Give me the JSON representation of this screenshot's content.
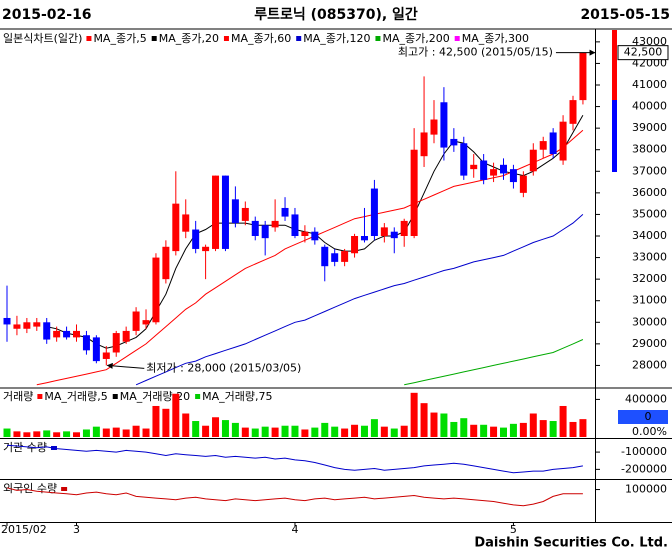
{
  "header": {
    "start_date": "2015-02-16",
    "title": "루트로닉 (085370), 일간",
    "end_date": "2015-05-15"
  },
  "chart_data": [
    {
      "type": "candlestick",
      "title": "일본식차트(일간)",
      "categories": [
        "2015/02",
        null,
        null,
        null,
        null,
        null,
        null,
        "3",
        null,
        null,
        null,
        null,
        null,
        null,
        null,
        null,
        null,
        null,
        null,
        null,
        null,
        null,
        null,
        null,
        null,
        null,
        null,
        null,
        null,
        "4",
        null,
        null,
        null,
        null,
        null,
        null,
        null,
        null,
        null,
        null,
        null,
        null,
        null,
        null,
        null,
        null,
        null,
        null,
        null,
        null,
        null,
        "5",
        null,
        null,
        null,
        null,
        null,
        null,
        null
      ],
      "open": [
        30200,
        29700,
        29700,
        29800,
        30000,
        29300,
        29600,
        29300,
        29400,
        29300,
        28300,
        28600,
        29100,
        29600,
        29900,
        30000,
        32000,
        33300,
        34200,
        34300,
        33300,
        33400,
        36800,
        35700,
        34700,
        34700,
        34500,
        34400,
        35300,
        35000,
        34000,
        34200,
        33500,
        33200,
        32800,
        33200,
        34000,
        36200,
        34000,
        34200,
        34000,
        34000,
        37700,
        38700,
        40200,
        38500,
        38300,
        37100,
        37500,
        36800,
        37300,
        37100,
        36000,
        37000,
        38000,
        38800,
        37500,
        39200,
        40300
      ],
      "high": [
        31700,
        30300,
        30200,
        30200,
        30200,
        29800,
        29800,
        29900,
        29600,
        29400,
        28900,
        29600,
        29800,
        30700,
        30600,
        33200,
        33800,
        37000,
        35700,
        34700,
        33600,
        36800,
        36800,
        36300,
        35600,
        34900,
        34700,
        35700,
        35800,
        35300,
        34500,
        34400,
        33600,
        33400,
        33400,
        34100,
        35300,
        36600,
        34600,
        34400,
        34800,
        39000,
        41400,
        40300,
        40900,
        39000,
        38600,
        37800,
        37800,
        37400,
        37600,
        37300,
        37000,
        38300,
        38600,
        39000,
        39600,
        40500,
        42500
      ],
      "low": [
        29100,
        29400,
        29500,
        29600,
        29000,
        29100,
        29200,
        29100,
        28500,
        28100,
        28000,
        28400,
        29000,
        29400,
        29700,
        29900,
        31800,
        33100,
        33900,
        33200,
        32000,
        33300,
        33300,
        34400,
        34500,
        33800,
        33100,
        34200,
        34700,
        33900,
        33700,
        33600,
        31900,
        32600,
        32600,
        33000,
        33700,
        33800,
        33700,
        33200,
        33500,
        33900,
        37200,
        38300,
        37500,
        37900,
        36600,
        36700,
        36400,
        36500,
        36600,
        36200,
        35800,
        36800,
        37600,
        37600,
        37300,
        38900,
        40100
      ],
      "close": [
        29900,
        29900,
        30000,
        30000,
        29200,
        29600,
        29300,
        29600,
        28700,
        28200,
        28600,
        29500,
        29600,
        30500,
        30100,
        33000,
        33500,
        35500,
        35000,
        33400,
        33500,
        36800,
        33400,
        34600,
        35300,
        34000,
        33900,
        34700,
        34900,
        34000,
        34200,
        33800,
        32600,
        32800,
        33300,
        34000,
        33800,
        34000,
        34400,
        33900,
        34700,
        38000,
        38800,
        39400,
        38100,
        38200,
        36800,
        37300,
        36600,
        37100,
        36900,
        36500,
        36800,
        38000,
        38400,
        37800,
        39300,
        40300,
        42500
      ],
      "up_color": "#ff0000",
      "down_color": "#0000ff",
      "series": [
        {
          "name": "MA_종가,5",
          "color": "#ff0000"
        },
        {
          "name": "MA_종가,20",
          "color": "#000000",
          "values": [
            null,
            null,
            null,
            null,
            29800,
            29700,
            29500,
            29400,
            29300,
            29000,
            28800,
            28900,
            29100,
            29300,
            29700,
            30500,
            31300,
            32500,
            33400,
            34100,
            34300,
            34600,
            34600,
            34600,
            34600,
            34500,
            34500,
            34500,
            34500,
            34300,
            34200,
            34100,
            33700,
            33400,
            33300,
            33300,
            33400,
            33800,
            34000,
            34000,
            34200,
            35000,
            36000,
            37000,
            37800,
            38400,
            38300,
            37900,
            37400,
            37200,
            37000,
            36900,
            36800,
            37000,
            37300,
            37600,
            38000,
            38800,
            39600
          ]
        },
        {
          "name": "MA_종가,60",
          "color": "#ff0000",
          "values": [
            null,
            null,
            null,
            27100,
            27200,
            27300,
            27400,
            27500,
            27600,
            27700,
            27800,
            28100,
            28400,
            28700,
            29000,
            29400,
            29800,
            30200,
            30600,
            30900,
            31300,
            31600,
            31900,
            32200,
            32500,
            32700,
            32900,
            33100,
            33400,
            33600,
            33800,
            34000,
            34200,
            34400,
            34600,
            34800,
            34900,
            35000,
            35100,
            35200,
            35300,
            35500,
            35700,
            35900,
            36100,
            36300,
            36400,
            36500,
            36600,
            36700,
            36800,
            37000,
            37200,
            37400,
            37600,
            37800,
            38100,
            38500,
            38900
          ]
        },
        {
          "name": "MA_종가,120",
          "color": "#0000cc",
          "values": [
            null,
            null,
            null,
            null,
            null,
            null,
            null,
            null,
            null,
            null,
            null,
            null,
            null,
            27100,
            27300,
            27500,
            27700,
            27900,
            28100,
            28200,
            28400,
            28550,
            28700,
            28850,
            29000,
            29200,
            29400,
            29600,
            29800,
            30000,
            30100,
            30300,
            30500,
            30700,
            30900,
            31100,
            31250,
            31400,
            31550,
            31700,
            31800,
            31950,
            32100,
            32250,
            32400,
            32500,
            32650,
            32800,
            32900,
            33000,
            33100,
            33300,
            33500,
            33700,
            33850,
            34000,
            34300,
            34600,
            35000
          ]
        },
        {
          "name": "MA_종가,200",
          "color": "#00aa00",
          "values": [
            null,
            null,
            null,
            null,
            null,
            null,
            null,
            null,
            null,
            null,
            null,
            null,
            null,
            null,
            null,
            null,
            null,
            null,
            null,
            null,
            null,
            null,
            null,
            null,
            null,
            null,
            null,
            null,
            null,
            null,
            null,
            null,
            null,
            null,
            null,
            null,
            null,
            null,
            null,
            null,
            27100,
            27200,
            27300,
            27400,
            27500,
            27600,
            27700,
            27800,
            27900,
            28000,
            28100,
            28200,
            28300,
            28400,
            28500,
            28600,
            28800,
            29000,
            29200
          ]
        },
        {
          "name": "MA_종가,300",
          "color": "#ff00ff"
        }
      ],
      "ylim": [
        27000,
        43550
      ],
      "yticks": [
        28000,
        29000,
        30000,
        31000,
        32000,
        33000,
        34000,
        35000,
        36000,
        37000,
        38000,
        39000,
        40000,
        41000,
        42000,
        43000
      ],
      "annotations": [
        {
          "text": "최고가 : 42,500 (2015/05/15)",
          "value": 42500,
          "color": "#ff0000"
        },
        {
          "text": "최저가 : 28,000 (2015/03/05)",
          "value": 28000,
          "color": "#0000ff"
        }
      ],
      "last_price": {
        "value": 42500,
        "label": "42,500"
      }
    },
    {
      "type": "bar",
      "title": "거래량",
      "values": [
        90000,
        60000,
        50000,
        60000,
        70000,
        50000,
        60000,
        50000,
        80000,
        110000,
        90000,
        100000,
        80000,
        120000,
        90000,
        330000,
        300000,
        460000,
        250000,
        170000,
        120000,
        210000,
        180000,
        150000,
        100000,
        90000,
        110000,
        100000,
        120000,
        120000,
        80000,
        100000,
        150000,
        110000,
        90000,
        130000,
        120000,
        190000,
        110000,
        90000,
        120000,
        470000,
        360000,
        260000,
        250000,
        160000,
        200000,
        130000,
        130000,
        110000,
        100000,
        140000,
        150000,
        250000,
        180000,
        170000,
        330000,
        160000,
        190000
      ],
      "up_color": "#ff0000",
      "down_color": "#00dd00",
      "series": [
        {
          "name": "MA_거래량,5",
          "color": "#ff0000"
        },
        {
          "name": "MA_거래량,20",
          "color": "#000000"
        },
        {
          "name": "MA_거래량,75",
          "color": "#00cc00"
        }
      ],
      "ylim": [
        0,
        500000
      ],
      "yticks": [
        400000
      ],
      "indicator_labels": [
        "0",
        "0.00%"
      ]
    },
    {
      "type": "line",
      "title": "기관 수량",
      "color": "#0000cc",
      "values": [
        -60000,
        -65000,
        -70000,
        -75000,
        -70000,
        -80000,
        -85000,
        -90000,
        -95000,
        -90000,
        -95000,
        -100000,
        -90000,
        -95000,
        -100000,
        -110000,
        -120000,
        -110000,
        -115000,
        -120000,
        -125000,
        -120000,
        -130000,
        -125000,
        -130000,
        -135000,
        -130000,
        -140000,
        -135000,
        -145000,
        -150000,
        -160000,
        -175000,
        -190000,
        -200000,
        -205000,
        -200000,
        -195000,
        -205000,
        -200000,
        -195000,
        -190000,
        -180000,
        -175000,
        -170000,
        -165000,
        -170000,
        -180000,
        -190000,
        -200000,
        -210000,
        -220000,
        -215000,
        -210000,
        -210000,
        -200000,
        -195000,
        -190000,
        -180000
      ],
      "ylim": [
        -250000,
        -30000
      ],
      "yticks": [
        -100000,
        -200000
      ]
    },
    {
      "type": "line",
      "title": "외국인 수량",
      "color": "#cc0000",
      "values": [
        110000,
        95000,
        100000,
        90000,
        85000,
        80000,
        75000,
        70000,
        80000,
        85000,
        75000,
        70000,
        80000,
        60000,
        55000,
        50000,
        45000,
        40000,
        50000,
        55000,
        45000,
        40000,
        35000,
        45000,
        40000,
        35000,
        40000,
        45000,
        50000,
        40000,
        35000,
        45000,
        50000,
        40000,
        45000,
        50000,
        55000,
        45000,
        50000,
        55000,
        60000,
        65000,
        55000,
        50000,
        45000,
        50000,
        45000,
        40000,
        35000,
        30000,
        20000,
        10000,
        5000,
        15000,
        30000,
        60000,
        75000,
        75000,
        75000
      ],
      "ylim": [
        -90000,
        150000
      ],
      "yticks": [
        100000
      ]
    }
  ],
  "footer": "Daishin Securities Co. Ltd."
}
